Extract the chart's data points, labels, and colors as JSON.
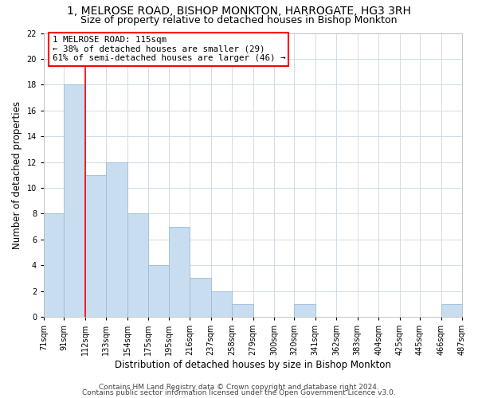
{
  "title": "1, MELROSE ROAD, BISHOP MONKTON, HARROGATE, HG3 3RH",
  "subtitle": "Size of property relative to detached houses in Bishop Monkton",
  "bar_edges": [
    71,
    91,
    112,
    133,
    154,
    175,
    195,
    216,
    237,
    258,
    279,
    300,
    320,
    341,
    362,
    383,
    404,
    425,
    445,
    466,
    487
  ],
  "bar_heights": [
    8,
    18,
    11,
    12,
    8,
    4,
    7,
    3,
    2,
    1,
    0,
    0,
    1,
    0,
    0,
    0,
    0,
    0,
    0,
    1
  ],
  "bar_color": "#c8ddf0",
  "bar_edgecolor": "#9bbdd8",
  "vline_x": 112,
  "vline_color": "red",
  "xlabel": "Distribution of detached houses by size in Bishop Monkton",
  "ylabel": "Number of detached properties",
  "ylim": [
    0,
    22
  ],
  "yticks": [
    0,
    2,
    4,
    6,
    8,
    10,
    12,
    14,
    16,
    18,
    20,
    22
  ],
  "xtick_labels": [
    "71sqm",
    "91sqm",
    "112sqm",
    "133sqm",
    "154sqm",
    "175sqm",
    "195sqm",
    "216sqm",
    "237sqm",
    "258sqm",
    "279sqm",
    "300sqm",
    "320sqm",
    "341sqm",
    "362sqm",
    "383sqm",
    "404sqm",
    "425sqm",
    "445sqm",
    "466sqm",
    "487sqm"
  ],
  "annotation_title": "1 MELROSE ROAD: 115sqm",
  "annotation_line1": "← 38% of detached houses are smaller (29)",
  "annotation_line2": "61% of semi-detached houses are larger (46) →",
  "footer1": "Contains HM Land Registry data © Crown copyright and database right 2024.",
  "footer2": "Contains public sector information licensed under the Open Government Licence v3.0.",
  "grid_color": "#d0dce8",
  "background_color": "#ffffff",
  "title_fontsize": 10,
  "subtitle_fontsize": 9,
  "xlabel_fontsize": 8.5,
  "ylabel_fontsize": 8.5,
  "tick_fontsize": 7,
  "footer_fontsize": 6.5
}
